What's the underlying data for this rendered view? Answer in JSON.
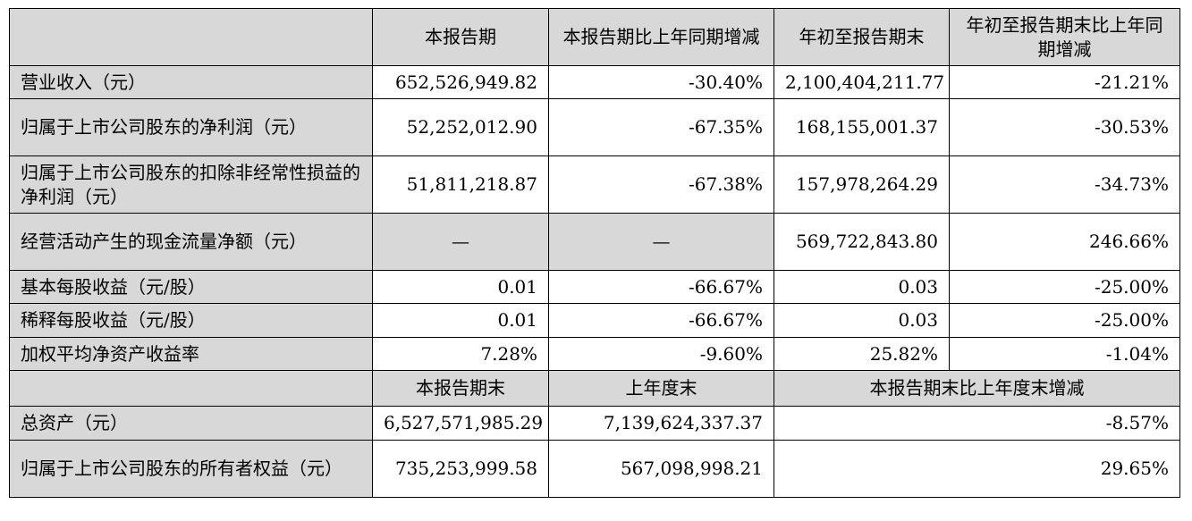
{
  "header": {
    "col1": "本报告期",
    "col2": "本报告期比上年同期增减",
    "col3": "年初至报告期末",
    "col4": "年初至报告期末比上年同期增减"
  },
  "rows": [
    {
      "label": "营业收入（元）",
      "v1": "652,526,949.82",
      "v2": "-30.40%",
      "v3": "2,100,404,211.77",
      "v4": "-21.21%"
    },
    {
      "label": "归属于上市公司股东的净利润（元）",
      "v1": "52,252,012.90",
      "v2": "-67.35%",
      "v3": "168,155,001.37",
      "v4": "-30.53%"
    },
    {
      "label": "归属于上市公司股东的扣除非经常性损益的净利润（元）",
      "v1": "51,811,218.87",
      "v2": "-67.38%",
      "v3": "157,978,264.29",
      "v4": "-34.73%"
    },
    {
      "label": "经营活动产生的现金流量净额（元）",
      "v1": "—",
      "v2": "—",
      "v3": "569,722,843.80",
      "v4": "246.66%"
    },
    {
      "label": "基本每股收益（元/股）",
      "v1": "0.01",
      "v2": "-66.67%",
      "v3": "0.03",
      "v4": "-25.00%"
    },
    {
      "label": "稀释每股收益（元/股）",
      "v1": "0.01",
      "v2": "-66.67%",
      "v3": "0.03",
      "v4": "-25.00%"
    },
    {
      "label": "加权平均净资产收益率",
      "v1": "7.28%",
      "v2": "-9.60%",
      "v3": "25.82%",
      "v4": "-1.04%"
    }
  ],
  "header2": {
    "col1": "本报告期末",
    "col2": "上年度末",
    "col3": "本报告期末比上年度末增减"
  },
  "rows2": [
    {
      "label": "总资产（元）",
      "v1": "6,527,571,985.29",
      "v2": "7,139,624,337.37",
      "v3": "-8.57%"
    },
    {
      "label": "归属于上市公司股东的所有者权益（元）",
      "v1": "735,253,999.58",
      "v2": "567,098,998.21",
      "v3": "29.65%"
    }
  ]
}
